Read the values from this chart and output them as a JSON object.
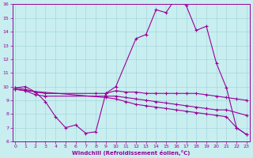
{
  "xlabel": "Windchill (Refroidissement éolien,°C)",
  "background_color": "#c8eef0",
  "line_color": "#990099",
  "ylim": [
    6,
    16
  ],
  "xlim": [
    0,
    23
  ],
  "yticks": [
    6,
    7,
    8,
    9,
    10,
    11,
    12,
    13,
    14,
    15,
    16
  ],
  "xticks": [
    0,
    1,
    2,
    3,
    4,
    5,
    6,
    7,
    8,
    9,
    10,
    11,
    12,
    13,
    14,
    15,
    16,
    17,
    18,
    19,
    20,
    21,
    22,
    23
  ],
  "curve_main_x": [
    0,
    1,
    2,
    3,
    4,
    5,
    6,
    7,
    8,
    9,
    10,
    12,
    13,
    14,
    15,
    16,
    17,
    18,
    19,
    20,
    21,
    22,
    23
  ],
  "curve_main_y": [
    9.9,
    10.0,
    9.6,
    8.9,
    7.8,
    7.0,
    7.2,
    6.6,
    6.7,
    9.5,
    10.0,
    13.5,
    13.8,
    15.6,
    15.4,
    16.5,
    15.9,
    14.1,
    14.4,
    11.7,
    9.9,
    7.0,
    6.5
  ],
  "curve_a_x": [
    0,
    1,
    2,
    3,
    8,
    9,
    10,
    11,
    12,
    13,
    14,
    15,
    16,
    17,
    18,
    19,
    20,
    21,
    22,
    23
  ],
  "curve_a_y": [
    9.9,
    9.8,
    9.6,
    9.5,
    9.5,
    9.5,
    9.7,
    9.6,
    9.6,
    9.5,
    9.5,
    9.5,
    9.5,
    9.5,
    9.5,
    9.4,
    9.3,
    9.2,
    9.1,
    9.0
  ],
  "curve_b_x": [
    0,
    1,
    2,
    3,
    9,
    10,
    11,
    12,
    13,
    14,
    15,
    16,
    17,
    18,
    19,
    20,
    21,
    23
  ],
  "curve_b_y": [
    9.8,
    9.7,
    9.4,
    9.3,
    9.3,
    9.3,
    9.2,
    9.1,
    9.0,
    8.9,
    8.8,
    8.7,
    8.6,
    8.5,
    8.4,
    8.3,
    8.3,
    7.9
  ],
  "curve_c_x": [
    0,
    1,
    9,
    10,
    11,
    12,
    13,
    14,
    15,
    16,
    17,
    18,
    19,
    20,
    21,
    22,
    23
  ],
  "curve_c_y": [
    9.8,
    9.7,
    9.2,
    9.1,
    8.9,
    8.7,
    8.6,
    8.5,
    8.4,
    8.3,
    8.2,
    8.1,
    8.0,
    7.9,
    7.8,
    7.0,
    6.5
  ]
}
